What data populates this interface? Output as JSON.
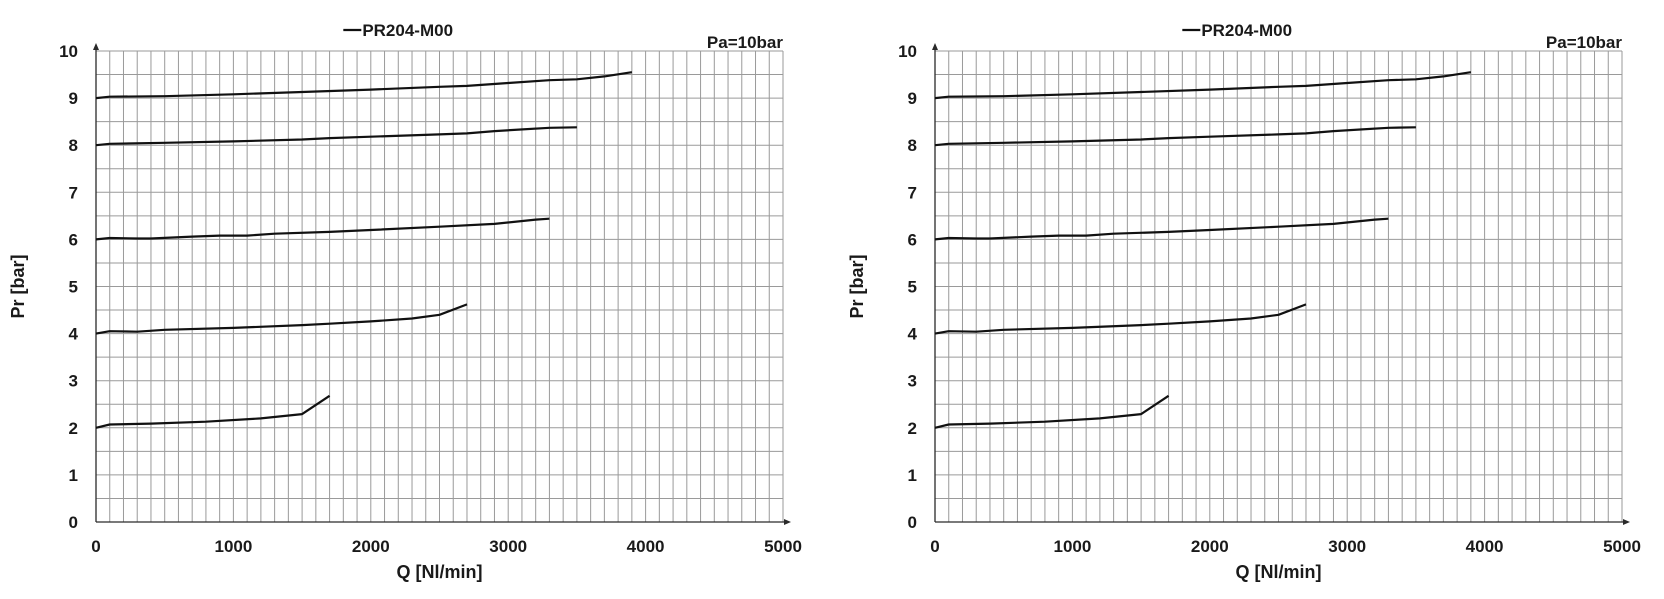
{
  "chart_data": [
    {
      "type": "line",
      "title": "PR204-M00",
      "annotation": "Pa=10bar",
      "xlabel": "Q [Nl/min]",
      "ylabel": "Pr [bar]",
      "xlim": [
        0,
        5000
      ],
      "ylim": [
        0,
        10
      ],
      "x_ticks": [
        "0",
        "1000",
        "2000",
        "3000",
        "4000",
        "5000"
      ],
      "y_ticks": [
        "0",
        "1",
        "2",
        "3",
        "4",
        "5",
        "6",
        "7",
        "8",
        "9",
        "10"
      ],
      "grid": true,
      "series": [
        {
          "points": [
            [
              0,
              9.0
            ],
            [
              100,
              9.03
            ],
            [
              500,
              9.04
            ],
            [
              1000,
              9.08
            ],
            [
              1500,
              9.13
            ],
            [
              2000,
              9.18
            ],
            [
              2500,
              9.24
            ],
            [
              2700,
              9.26
            ],
            [
              3000,
              9.32
            ],
            [
              3300,
              9.38
            ],
            [
              3500,
              9.4
            ],
            [
              3700,
              9.46
            ],
            [
              3900,
              9.55
            ]
          ]
        },
        {
          "points": [
            [
              0,
              8.0
            ],
            [
              100,
              8.03
            ],
            [
              500,
              8.05
            ],
            [
              1000,
              8.08
            ],
            [
              1500,
              8.12
            ],
            [
              1700,
              8.15
            ],
            [
              2000,
              8.18
            ],
            [
              2500,
              8.23
            ],
            [
              2700,
              8.25
            ],
            [
              2900,
              8.3
            ],
            [
              3300,
              8.37
            ],
            [
              3500,
              8.38
            ]
          ]
        },
        {
          "points": [
            [
              0,
              6.0
            ],
            [
              100,
              6.03
            ],
            [
              300,
              6.02
            ],
            [
              400,
              6.02
            ],
            [
              700,
              6.06
            ],
            [
              900,
              6.08
            ],
            [
              1100,
              6.08
            ],
            [
              1300,
              6.12
            ],
            [
              1700,
              6.16
            ],
            [
              2000,
              6.2
            ],
            [
              2500,
              6.27
            ],
            [
              2900,
              6.33
            ],
            [
              3200,
              6.42
            ],
            [
              3300,
              6.44
            ]
          ]
        },
        {
          "points": [
            [
              0,
              4.0
            ],
            [
              100,
              4.05
            ],
            [
              300,
              4.04
            ],
            [
              500,
              4.08
            ],
            [
              1000,
              4.12
            ],
            [
              1500,
              4.18
            ],
            [
              1700,
              4.21
            ],
            [
              2000,
              4.26
            ],
            [
              2300,
              4.32
            ],
            [
              2500,
              4.4
            ],
            [
              2700,
              4.62
            ]
          ]
        },
        {
          "points": [
            [
              0,
              2.0
            ],
            [
              100,
              2.07
            ],
            [
              400,
              2.09
            ],
            [
              800,
              2.13
            ],
            [
              1200,
              2.2
            ],
            [
              1500,
              2.29
            ],
            [
              1700,
              2.68
            ]
          ]
        }
      ]
    },
    {
      "type": "line",
      "title": "PR204-M00",
      "annotation": "Pa=10bar",
      "xlabel": "Q [Nl/min]",
      "ylabel": "Pr [bar]",
      "xlim": [
        0,
        5000
      ],
      "ylim": [
        0,
        10
      ],
      "x_ticks": [
        "0",
        "1000",
        "2000",
        "3000",
        "4000",
        "5000"
      ],
      "y_ticks": [
        "0",
        "1",
        "2",
        "3",
        "4",
        "5",
        "6",
        "7",
        "8",
        "9",
        "10"
      ],
      "grid": true,
      "series": [
        {
          "points": [
            [
              0,
              9.0
            ],
            [
              100,
              9.03
            ],
            [
              500,
              9.04
            ],
            [
              1000,
              9.08
            ],
            [
              1500,
              9.13
            ],
            [
              2000,
              9.18
            ],
            [
              2500,
              9.24
            ],
            [
              2700,
              9.26
            ],
            [
              3000,
              9.32
            ],
            [
              3300,
              9.38
            ],
            [
              3500,
              9.4
            ],
            [
              3700,
              9.46
            ],
            [
              3900,
              9.55
            ]
          ]
        },
        {
          "points": [
            [
              0,
              8.0
            ],
            [
              100,
              8.03
            ],
            [
              500,
              8.05
            ],
            [
              1000,
              8.08
            ],
            [
              1500,
              8.12
            ],
            [
              1700,
              8.15
            ],
            [
              2000,
              8.18
            ],
            [
              2500,
              8.23
            ],
            [
              2700,
              8.25
            ],
            [
              2900,
              8.3
            ],
            [
              3300,
              8.37
            ],
            [
              3500,
              8.38
            ]
          ]
        },
        {
          "points": [
            [
              0,
              6.0
            ],
            [
              100,
              6.03
            ],
            [
              300,
              6.02
            ],
            [
              400,
              6.02
            ],
            [
              700,
              6.06
            ],
            [
              900,
              6.08
            ],
            [
              1100,
              6.08
            ],
            [
              1300,
              6.12
            ],
            [
              1700,
              6.16
            ],
            [
              2000,
              6.2
            ],
            [
              2500,
              6.27
            ],
            [
              2900,
              6.33
            ],
            [
              3200,
              6.42
            ],
            [
              3300,
              6.44
            ]
          ]
        },
        {
          "points": [
            [
              0,
              4.0
            ],
            [
              100,
              4.05
            ],
            [
              300,
              4.04
            ],
            [
              500,
              4.08
            ],
            [
              1000,
              4.12
            ],
            [
              1500,
              4.18
            ],
            [
              1700,
              4.21
            ],
            [
              2000,
              4.26
            ],
            [
              2300,
              4.32
            ],
            [
              2500,
              4.4
            ],
            [
              2700,
              4.62
            ]
          ]
        },
        {
          "points": [
            [
              0,
              2.0
            ],
            [
              100,
              2.07
            ],
            [
              400,
              2.09
            ],
            [
              800,
              2.13
            ],
            [
              1200,
              2.2
            ],
            [
              1500,
              2.29
            ],
            [
              1700,
              2.68
            ]
          ]
        }
      ]
    }
  ]
}
